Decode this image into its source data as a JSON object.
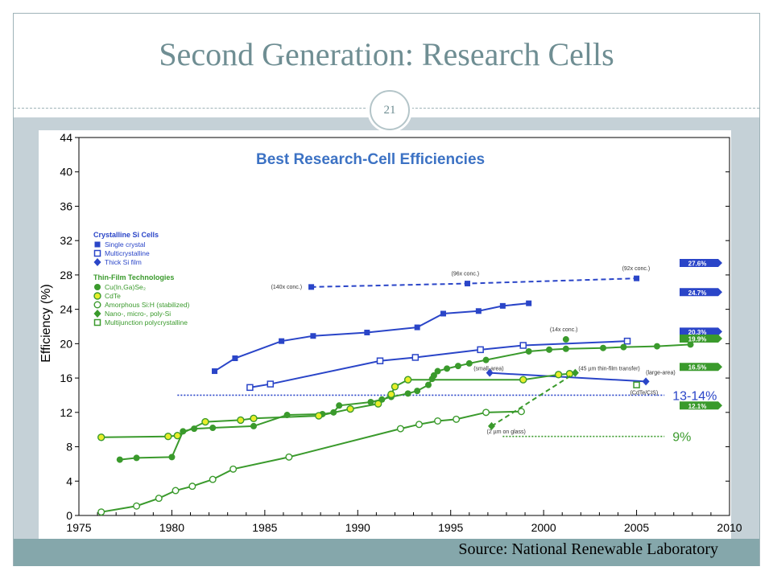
{
  "slide": {
    "title": "Second Generation: Research Cells",
    "page_number": "21",
    "source": "Source: National Renewable Laboratory"
  },
  "chart_data": {
    "type": "line",
    "title": "Best Research-Cell Efficiencies",
    "xlabel": "",
    "ylabel": "Efficiency (%)",
    "xlim": [
      1975,
      2010
    ],
    "ylim": [
      0,
      44
    ],
    "x_ticks": [
      1975,
      1980,
      1985,
      1990,
      1995,
      2000,
      2005,
      2010
    ],
    "y_ticks": [
      0,
      4,
      8,
      12,
      16,
      20,
      24,
      28,
      32,
      36,
      40,
      44
    ],
    "grid": false,
    "legend_position": "left-middle",
    "legend_groups": [
      {
        "heading": "Crystalline Si Cells",
        "items": [
          "Single crystal",
          "Multicrystalline",
          "Thick Si film"
        ]
      },
      {
        "heading": "Thin-Film Technologies",
        "items": [
          "Cu(In,Ga)Se₂",
          "CdTe",
          "Amorphous Si:H (stabilized)",
          "Nano-, micro-, poly-Si",
          "Multijunction polycrystalline"
        ]
      }
    ],
    "series": [
      {
        "name": "Single crystal",
        "color": "#2a45c8",
        "marker": "square-filled",
        "dashed": false,
        "points": [
          [
            1982.3,
            16.8
          ],
          [
            1983.4,
            18.3
          ],
          [
            1985.9,
            20.3
          ],
          [
            1987.6,
            20.9
          ],
          [
            1990.5,
            21.3
          ],
          [
            1993.2,
            21.9
          ],
          [
            1994.6,
            23.5
          ],
          [
            1996.5,
            23.8
          ],
          [
            1997.8,
            24.4
          ],
          [
            1999.2,
            24.7
          ]
        ]
      },
      {
        "name": "Single crystal (concentrator)",
        "color": "#2a45c8",
        "marker": "square-filled",
        "dashed": true,
        "points": [
          [
            1987.5,
            26.6
          ],
          [
            1995.9,
            27.0
          ],
          [
            2005,
            27.6
          ]
        ]
      },
      {
        "name": "Multicrystalline",
        "color": "#2a45c8",
        "marker": "square-open",
        "dashed": false,
        "points": [
          [
            1984.2,
            14.9
          ],
          [
            1985.3,
            15.3
          ],
          [
            1991.2,
            18.0
          ],
          [
            1993.1,
            18.4
          ],
          [
            1996.6,
            19.3
          ],
          [
            1998.9,
            19.8
          ],
          [
            2004.5,
            20.3
          ]
        ]
      },
      {
        "name": "Thick Si film",
        "color": "#2a45c8",
        "marker": "diamond-filled",
        "dashed": false,
        "points": [
          [
            1997.1,
            16.6
          ],
          [
            2005.5,
            15.6
          ]
        ]
      },
      {
        "name": "Cu(In,Ga)Se₂",
        "color": "#3a9a2c",
        "marker": "circle-filled",
        "dashed": false,
        "points": [
          [
            1977.2,
            6.5
          ],
          [
            1978.1,
            6.7
          ],
          [
            1980,
            6.8
          ],
          [
            1980.6,
            9.8
          ],
          [
            1981.2,
            10.1
          ],
          [
            1982.2,
            10.2
          ],
          [
            1984.4,
            10.4
          ],
          [
            1986.2,
            11.7
          ],
          [
            1988.1,
            11.8
          ],
          [
            1988.7,
            12.0
          ],
          [
            1989,
            12.8
          ],
          [
            1990.7,
            13.2
          ],
          [
            1991.3,
            13.5
          ],
          [
            1991.8,
            13.8
          ],
          [
            1992.7,
            14.2
          ],
          [
            1993.2,
            14.5
          ],
          [
            1993.8,
            15.2
          ],
          [
            1994,
            15.9
          ],
          [
            1994.1,
            16.3
          ],
          [
            1994.3,
            16.8
          ],
          [
            1994.8,
            17.1
          ],
          [
            1995.4,
            17.4
          ],
          [
            1996,
            17.7
          ],
          [
            1996.9,
            18.1
          ],
          [
            1999.2,
            19.1
          ],
          [
            2000.3,
            19.3
          ],
          [
            2001.2,
            19.4
          ],
          [
            2003.2,
            19.5
          ],
          [
            2004.3,
            19.6
          ],
          [
            2006.1,
            19.7
          ],
          [
            2007.9,
            19.9
          ]
        ]
      },
      {
        "name": "Cu(In,Ga)Se₂ (concentrator)",
        "color": "#3a9a2c",
        "marker": "circle-filled",
        "dashed": false,
        "points": [
          [
            2001.2,
            20.5
          ]
        ]
      },
      {
        "name": "CdTe",
        "color": "#3a9a2c",
        "marker": "circle-yellow",
        "dashed": false,
        "points": [
          [
            1976.2,
            9.1
          ],
          [
            1979.8,
            9.2
          ],
          [
            1980.3,
            9.3
          ],
          [
            1981.8,
            10.9
          ],
          [
            1983.7,
            11.1
          ],
          [
            1984.4,
            11.3
          ],
          [
            1987.9,
            11.6
          ],
          [
            1989.6,
            12.4
          ],
          [
            1991.1,
            13.0
          ],
          [
            1991.8,
            14.1
          ],
          [
            1992,
            15.0
          ],
          [
            1992.7,
            15.8
          ],
          [
            1998.9,
            15.8
          ],
          [
            2000.8,
            16.4
          ],
          [
            2001.4,
            16.5
          ]
        ]
      },
      {
        "name": "Amorphous Si:H (stabilized)",
        "color": "#3a9a2c",
        "marker": "circle-open",
        "dashed": false,
        "points": [
          [
            1976.2,
            0.4
          ],
          [
            1978.1,
            1.1
          ],
          [
            1979.3,
            2.0
          ],
          [
            1980.2,
            2.9
          ],
          [
            1981.1,
            3.4
          ],
          [
            1982.2,
            4.2
          ],
          [
            1983.3,
            5.4
          ],
          [
            1986.3,
            6.8
          ],
          [
            1992.3,
            10.1
          ],
          [
            1993.3,
            10.6
          ],
          [
            1994.3,
            11.0
          ],
          [
            1995.3,
            11.2
          ],
          [
            1996.9,
            12.0
          ],
          [
            1998.8,
            12.1
          ]
        ]
      },
      {
        "name": "Multijunction polycrystalline",
        "color": "#3a9a2c",
        "marker": "square-open",
        "dashed": false,
        "points": [
          [
            2005,
            15.2
          ]
        ]
      },
      {
        "name": "Nano-, micro-, poly-Si",
        "color": "#3a9a2c",
        "marker": "diamond-filled",
        "dashed": true,
        "points": [
          [
            1997.2,
            10.4
          ],
          [
            2001.7,
            16.6
          ]
        ]
      }
    ],
    "reference_lines": [
      {
        "label": "13-14%",
        "y": 14.0,
        "color": "#2a45c8",
        "x_from": 1980.3,
        "x_to": 2006.5
      },
      {
        "label": "9%",
        "y": 9.2,
        "color": "#3a9a2c",
        "x_from": 1997.8,
        "x_to": 2006.5
      }
    ],
    "annotations": [
      {
        "text": "(140x conc.)",
        "x": 1987.5,
        "y": 26.6
      },
      {
        "text": "(96x conc.)",
        "x": 1995.9,
        "y": 27.0
      },
      {
        "text": "(92x conc.)",
        "x": 2005,
        "y": 27.6
      },
      {
        "text": "(14x conc.)",
        "x": 2001.2,
        "y": 20.5
      },
      {
        "text": "(large-area)",
        "x": 2005.5,
        "y": 15.6
      },
      {
        "text": "(small-area)",
        "x": 1997.1,
        "y": 16.6
      },
      {
        "text": "(CdTe/CIS)",
        "x": 2005,
        "y": 15.2
      },
      {
        "text": "(45 µm thin-film transfer)",
        "x": 2001.7,
        "y": 16.6
      },
      {
        "text": "(2 µm on glass)",
        "x": 1997.2,
        "y": 10.4
      }
    ],
    "right_badges": [
      {
        "text": "27.6%",
        "y": 29.4,
        "color": "#2a45c8"
      },
      {
        "text": "24.7%",
        "y": 26.0,
        "color": "#2a45c8"
      },
      {
        "text": "20.3%",
        "y": 21.4,
        "color": "#2a45c8"
      },
      {
        "text": "19.9%",
        "y": 20.6,
        "color": "#3a9a2c"
      },
      {
        "text": "16.5%",
        "y": 17.3,
        "color": "#3a9a2c"
      },
      {
        "text": "12.1%",
        "y": 12.8,
        "color": "#3a9a2c"
      }
    ]
  }
}
